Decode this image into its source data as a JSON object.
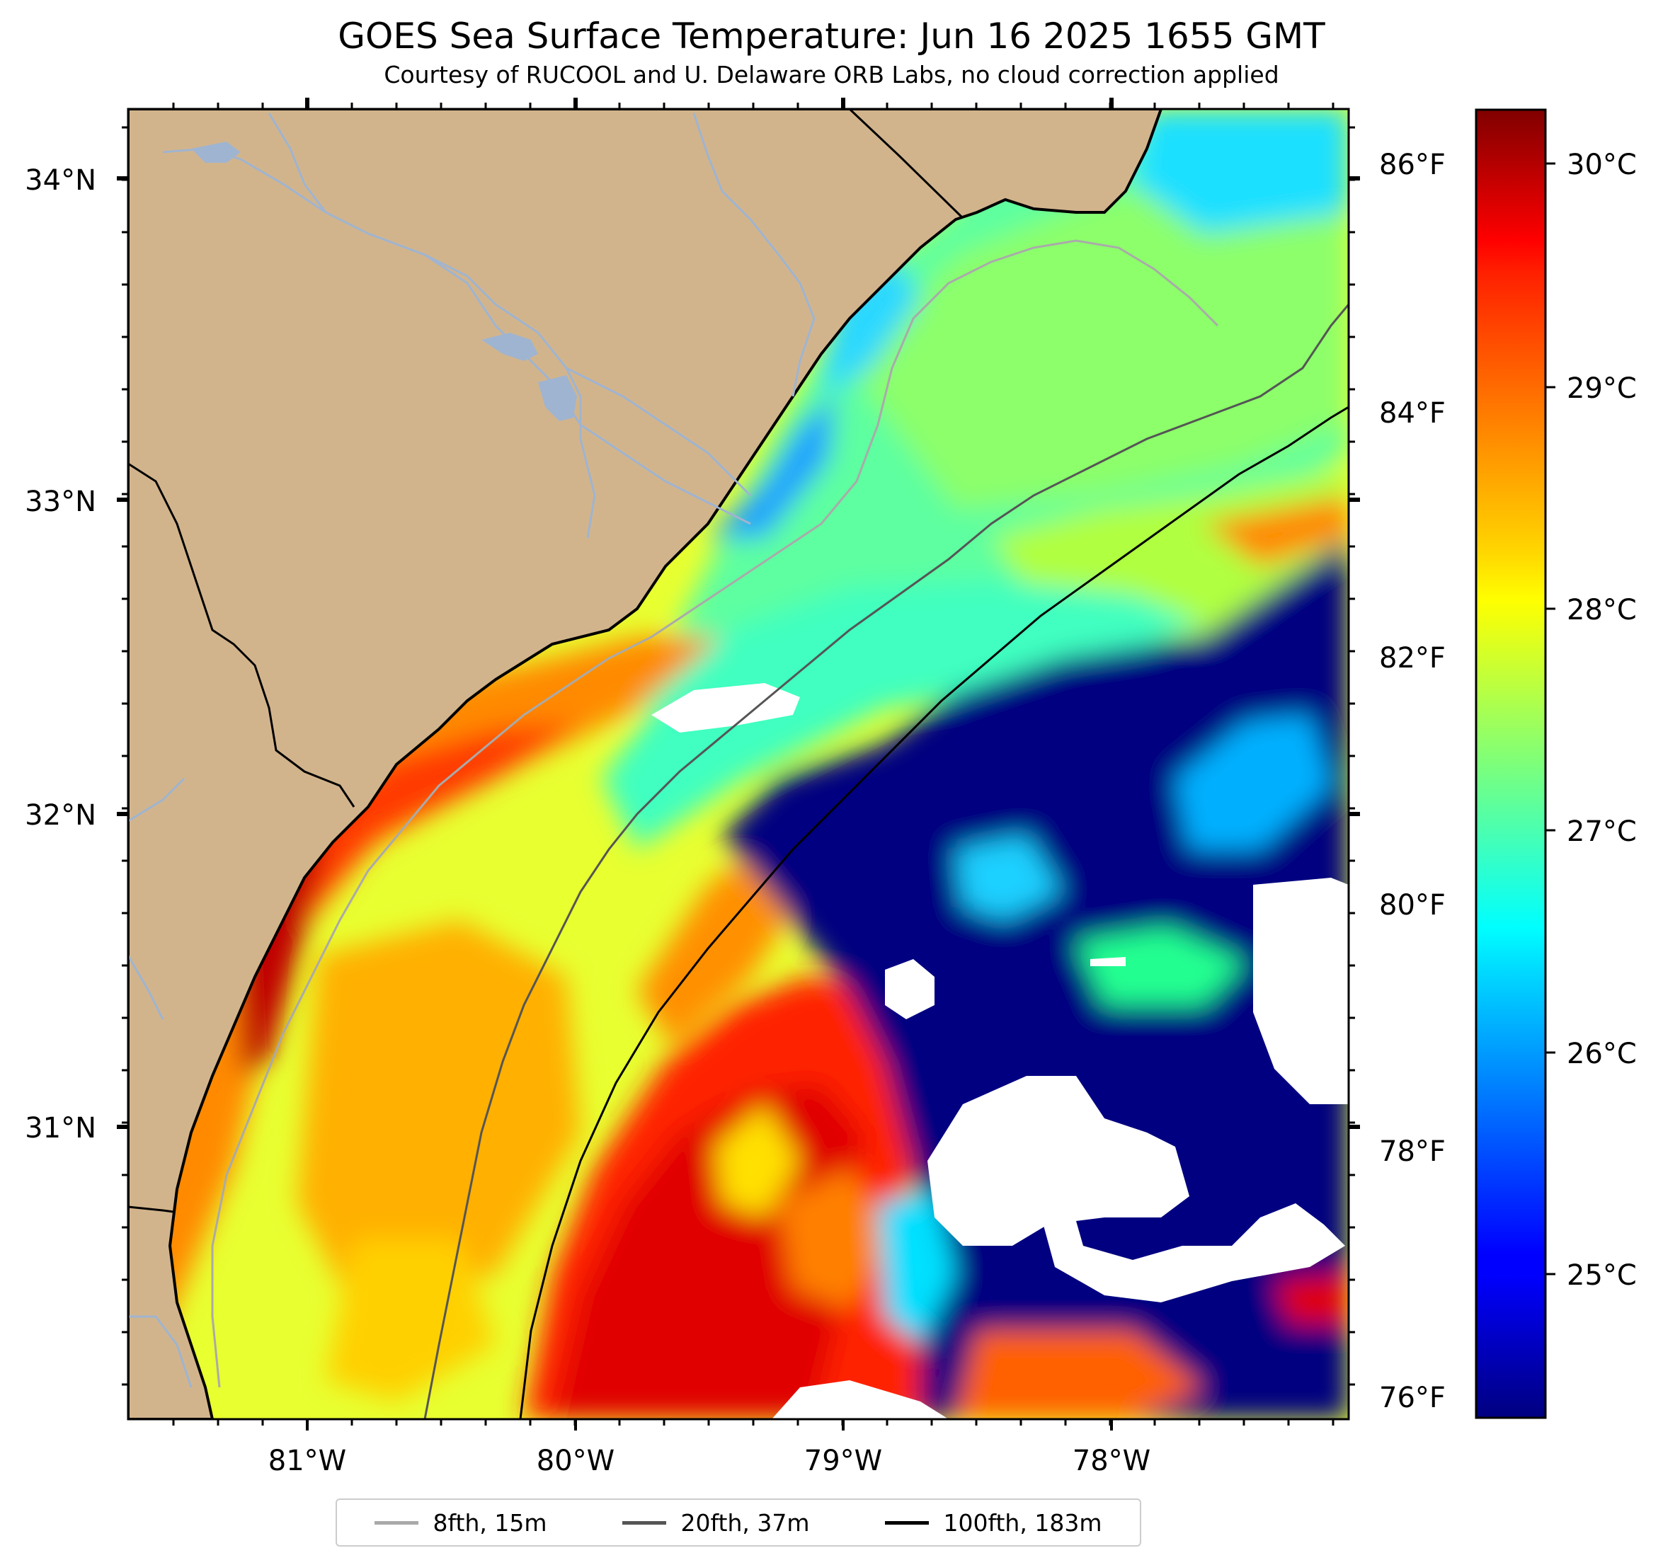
{
  "title": "GOES Sea Surface Temperature: Jun 16 2025 1655 GMT",
  "subtitle": "Courtesy of RUCOOL and U. Delaware ORB Labs, no cloud correction applied",
  "map": {
    "lat_labels": [
      "34°N",
      "33°N",
      "32°N",
      "31°N"
    ],
    "lon_labels": [
      "81°W",
      "80°W",
      "79°W",
      "78°W"
    ],
    "fahrenheit_labels": [
      "86°F",
      "84°F",
      "82°F",
      "80°F",
      "78°F",
      "76°F"
    ],
    "colors": {
      "land": "#d2b48c",
      "river": "#9fb4d0",
      "ocean_cold": "#000080",
      "cloud": "#ffffff"
    }
  },
  "colorbar": {
    "colormap": "jet",
    "labels": [
      "30°C",
      "29°C",
      "28°C",
      "27°C",
      "26°C",
      "25°C"
    ]
  },
  "legend": [
    {
      "label": "8fth, 15m",
      "color": "#aaaaaa"
    },
    {
      "label": "20fth, 37m",
      "color": "#555555"
    },
    {
      "label": "100fth, 183m",
      "color": "#000000"
    }
  ]
}
